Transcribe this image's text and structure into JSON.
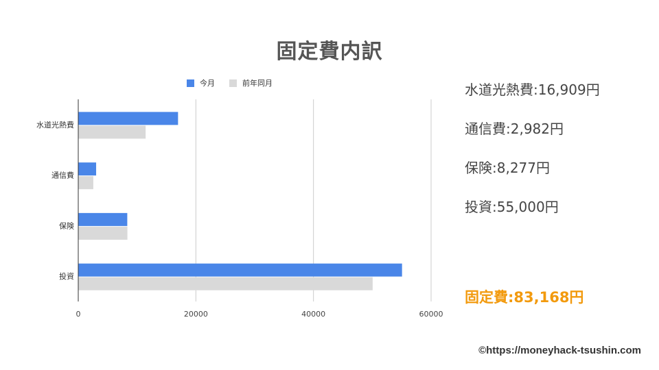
{
  "title": "固定費内訳",
  "chart_data": {
    "type": "bar",
    "orientation": "horizontal",
    "categories": [
      "水道光熱費",
      "通信費",
      "保険",
      "投資"
    ],
    "series": [
      {
        "name": "今月",
        "values": [
          16909,
          2982,
          8277,
          55000
        ],
        "color": "#4a86e8"
      },
      {
        "name": "前年同月",
        "values": [
          11400,
          2500,
          8300,
          50000
        ],
        "color": "#d9d9d9"
      }
    ],
    "xlim": [
      0,
      60000
    ],
    "xticks": [
      "0",
      "20000",
      "40000",
      "60000"
    ],
    "legend_position": "top",
    "grid": true
  },
  "summary": [
    {
      "text": "水道光熱費:16,909円"
    },
    {
      "text": "通信費:2,982円"
    },
    {
      "text": "保険:8,277円"
    },
    {
      "text": "投資:55,000円"
    }
  ],
  "total": {
    "text": "固定費:83,168円",
    "color": "#f29a0e"
  },
  "footer": "©https://moneyhack-tsushin.com"
}
